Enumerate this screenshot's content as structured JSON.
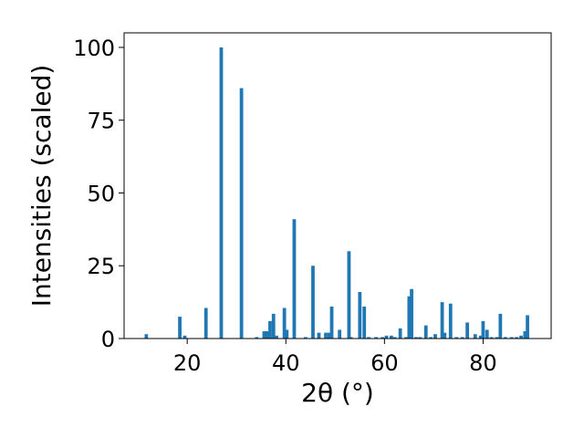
{
  "chart_data": {
    "type": "bar",
    "xlabel": "2θ (°)",
    "ylabel": "Intensities (scaled)",
    "xlim": [
      7.2,
      93.8
    ],
    "ylim": [
      0,
      105
    ],
    "xticks": [
      20,
      40,
      60,
      80
    ],
    "yticks": [
      0,
      25,
      50,
      75,
      100
    ],
    "grid": false,
    "bar_color": "#1f77b4",
    "bar_width": 0.7,
    "x": [
      11.7,
      18.5,
      19.5,
      23.8,
      26.9,
      31.0,
      34.1,
      35.6,
      36.2,
      36.8,
      37.5,
      38.1,
      39.7,
      40.2,
      41.7,
      44.0,
      45.5,
      46.7,
      48.1,
      48.8,
      49.3,
      50.9,
      52.8,
      53.2,
      55.0,
      55.9,
      56.8,
      58.3,
      59.6,
      60.4,
      61.4,
      62.1,
      63.2,
      64.4,
      65.0,
      65.5,
      66.4,
      67.2,
      68.4,
      69.4,
      70.3,
      71.7,
      72.2,
      73.4,
      74.6,
      75.8,
      76.8,
      78.4,
      79.5,
      80.0,
      80.8,
      81.7,
      82.8,
      83.5,
      84.5,
      85.8,
      86.8,
      87.7,
      88.5,
      89.0
    ],
    "values": [
      1.5,
      7.5,
      1.0,
      10.5,
      100.0,
      86.0,
      0.5,
      2.5,
      2.5,
      6.0,
      8.5,
      1.0,
      10.5,
      3.0,
      41.0,
      0.5,
      25.0,
      2.0,
      2.0,
      2.0,
      11.0,
      3.0,
      30.0,
      0.5,
      16.0,
      11.0,
      0.5,
      0.5,
      0.5,
      1.0,
      1.0,
      0.5,
      3.5,
      0.5,
      14.5,
      17.0,
      0.5,
      0.5,
      4.5,
      0.5,
      1.5,
      12.5,
      2.0,
      12.0,
      0.5,
      0.5,
      5.5,
      1.5,
      1.0,
      6.0,
      3.0,
      0.5,
      0.5,
      8.5,
      0.5,
      0.5,
      0.5,
      1.0,
      2.5,
      8.0
    ]
  }
}
